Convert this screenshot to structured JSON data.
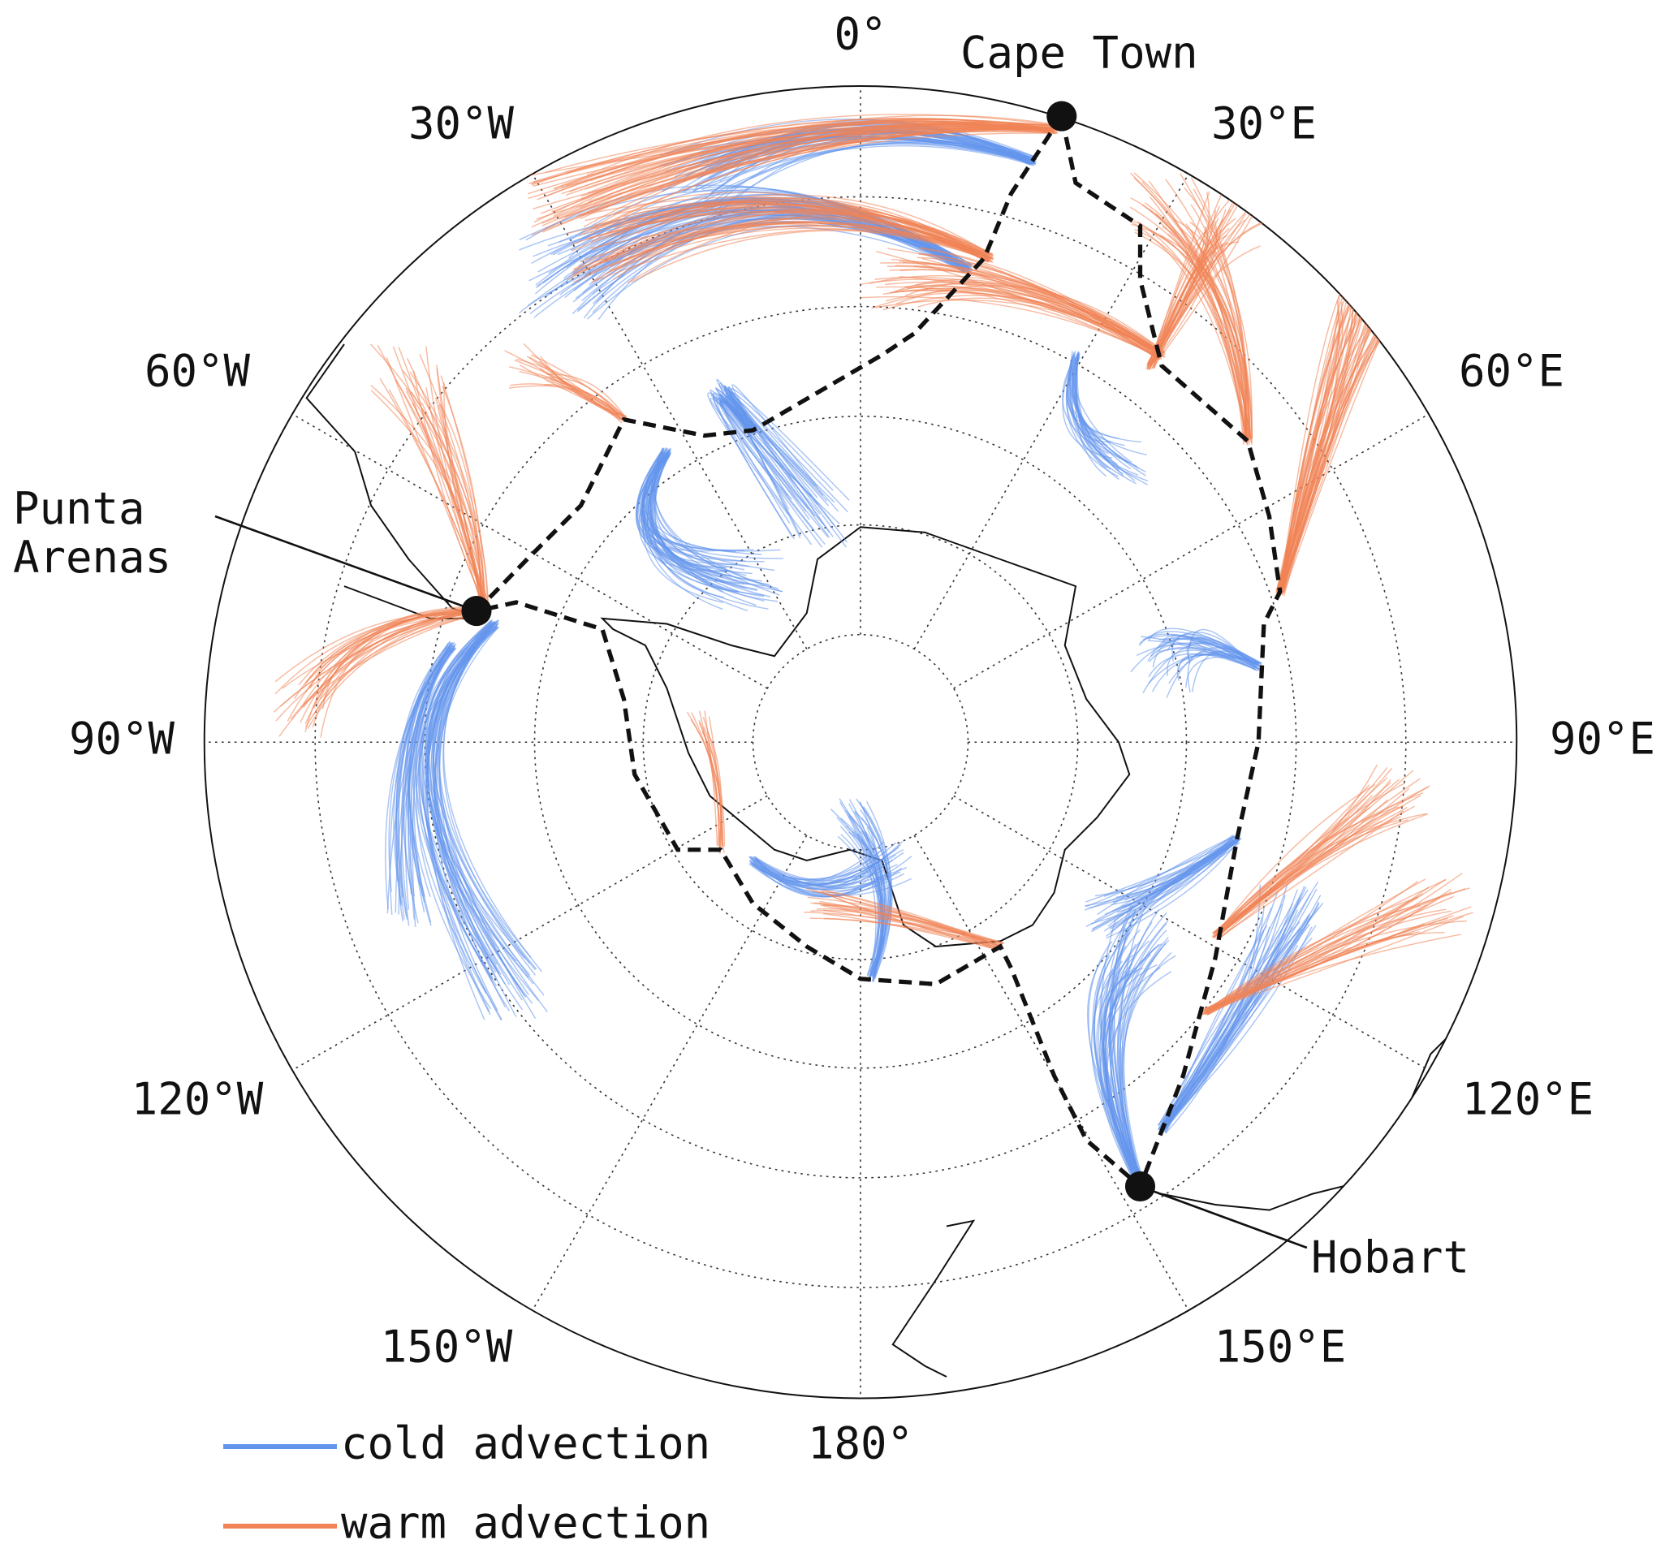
{
  "map": {
    "lon_labels": [
      "0°",
      "30°E",
      "60°E",
      "90°E",
      "120°E",
      "150°E",
      "180°",
      "150°W",
      "120°W",
      "90°W",
      "60°W",
      "30°W"
    ],
    "cities": [
      "Cape Town",
      "Punta Arenas",
      "Hobart"
    ],
    "legend": [
      {
        "name": "cold advection",
        "color": "#6495ed"
      },
      {
        "name": "warm advection",
        "color": "#f08456"
      }
    ]
  }
}
